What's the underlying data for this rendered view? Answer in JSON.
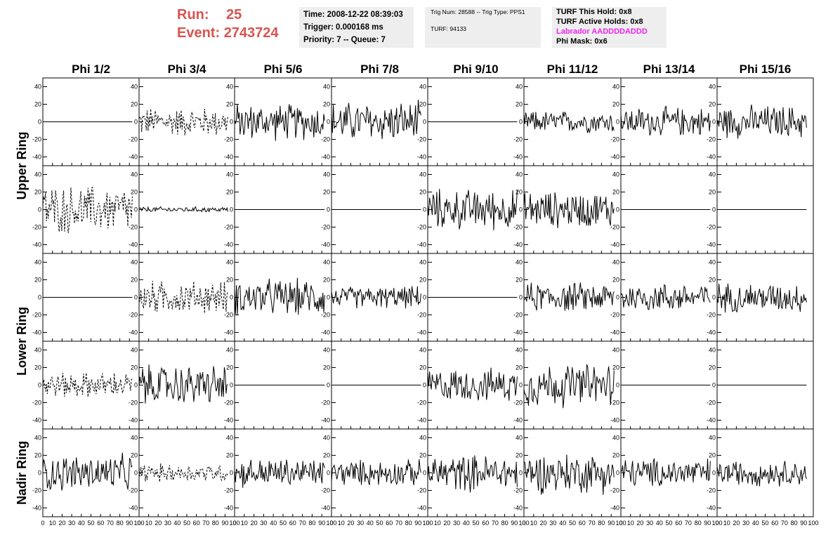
{
  "header": {
    "run_label": "Run:",
    "run_value": "25",
    "event_label": "Event:",
    "event_value": "2743724"
  },
  "info_box_1": {
    "time": "Time: 2008-12-22 08:39:03",
    "trigger": "Trigger: 0.000168 ms",
    "priority": "Priority: 7 -- Queue: 7"
  },
  "info_box_2": {
    "trig": "Trig Num: 28588 -- Trig Type: PPS1",
    "turf": "TURF: 94133"
  },
  "info_box_3": {
    "this_hold": "TURF This Hold: 0x8",
    "active_holds": "TURF Active Holds: 0x8",
    "labrador": "Labrador AADDDDADDD",
    "phi_mask": "Phi Mask: 0x6"
  },
  "colors": {
    "run_text": "#d9534f",
    "labrador_text": "#ee22ee",
    "info_bg": "#eeeeee"
  },
  "chart_data": {
    "type": "line",
    "grid": false,
    "columns": [
      "Phi 1/2",
      "Phi 3/4",
      "Phi 5/6",
      "Phi 7/8",
      "Phi 9/10",
      "Phi 11/12",
      "Phi 13/14",
      "Phi 15/16"
    ],
    "row_groups": [
      {
        "label": "Upper Ring",
        "rows": [
          0,
          1
        ]
      },
      {
        "label": "Lower Ring",
        "rows": [
          2,
          3
        ]
      },
      {
        "label": "Nadir Ring",
        "rows": [
          4
        ]
      }
    ],
    "xlim": [
      0,
      100
    ],
    "ylim": [
      -50,
      50
    ],
    "x_ticks": [
      0,
      10,
      20,
      30,
      40,
      50,
      60,
      70,
      80,
      90,
      100
    ],
    "y_ticks": [
      -40,
      -20,
      0,
      20,
      40
    ],
    "trace_points": 100,
    "trace_x_max": 93,
    "panels": [
      [
        {
          "amp": 0,
          "style": "flat"
        },
        {
          "amp": 16,
          "style": "dashed"
        },
        {
          "amp": 20,
          "style": "solid"
        },
        {
          "amp": 22,
          "style": "solid"
        },
        {
          "amp": 0,
          "style": "flat"
        },
        {
          "amp": 12,
          "style": "solid"
        },
        {
          "amp": 16,
          "style": "solid"
        },
        {
          "amp": 18,
          "style": "solid"
        }
      ],
      [
        {
          "amp": 26,
          "style": "dashed"
        },
        {
          "amp": 3,
          "style": "solid"
        },
        {
          "amp": 0,
          "style": "flat"
        },
        {
          "amp": 0,
          "style": "flat"
        },
        {
          "amp": 22,
          "style": "solid"
        },
        {
          "amp": 20,
          "style": "solid"
        },
        {
          "amp": 0,
          "style": "flat"
        },
        {
          "amp": 0,
          "style": "flat"
        }
      ],
      [
        {
          "amp": 0,
          "style": "flat"
        },
        {
          "amp": 18,
          "style": "dashed"
        },
        {
          "amp": 20,
          "style": "solid"
        },
        {
          "amp": 12,
          "style": "solid"
        },
        {
          "amp": 0,
          "style": "flat"
        },
        {
          "amp": 16,
          "style": "solid"
        },
        {
          "amp": 16,
          "style": "solid"
        },
        {
          "amp": 16,
          "style": "solid"
        }
      ],
      [
        {
          "amp": 14,
          "style": "dashed"
        },
        {
          "amp": 22,
          "style": "solid"
        },
        {
          "amp": 0,
          "style": "flat"
        },
        {
          "amp": 0,
          "style": "flat"
        },
        {
          "amp": 18,
          "style": "solid"
        },
        {
          "amp": 24,
          "style": "solid"
        },
        {
          "amp": 0,
          "style": "flat"
        },
        {
          "amp": 0,
          "style": "flat"
        }
      ],
      [
        {
          "amp": 20,
          "style": "solid"
        },
        {
          "amp": 10,
          "style": "dashed"
        },
        {
          "amp": 16,
          "style": "solid"
        },
        {
          "amp": 14,
          "style": "solid"
        },
        {
          "amp": 20,
          "style": "solid"
        },
        {
          "amp": 22,
          "style": "solid"
        },
        {
          "amp": 16,
          "style": "solid"
        },
        {
          "amp": 14,
          "style": "solid"
        }
      ]
    ]
  }
}
